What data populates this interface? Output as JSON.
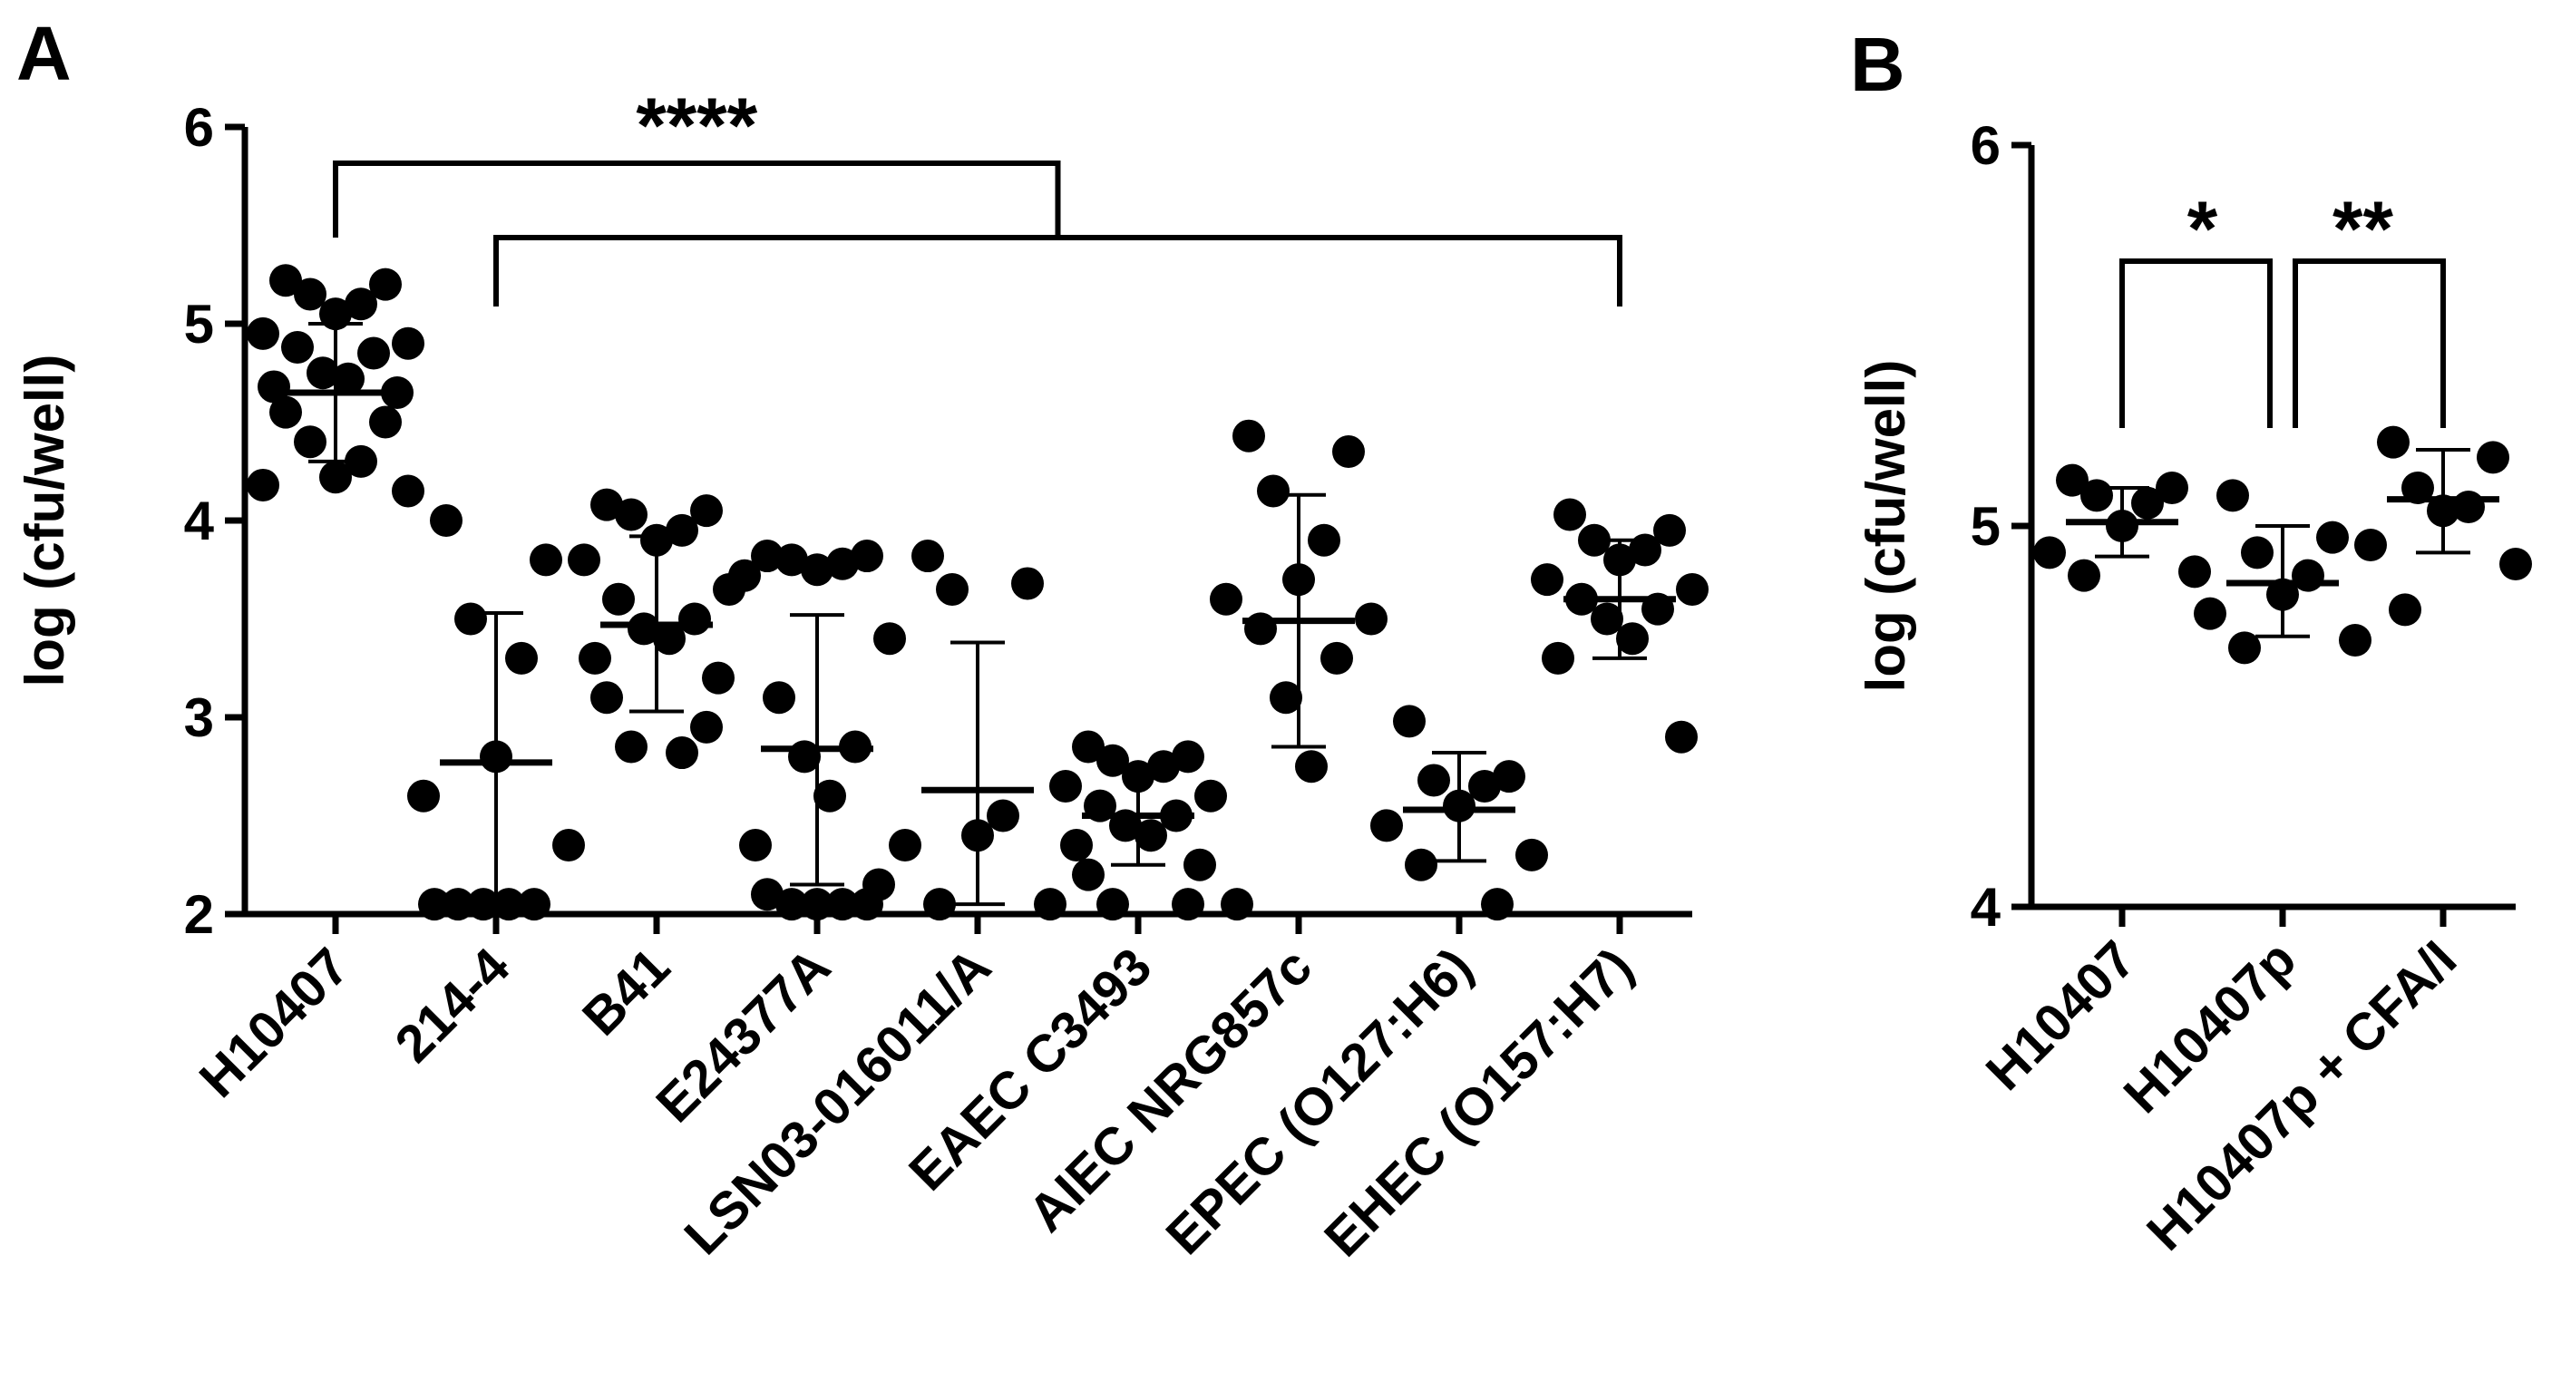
{
  "chart_data": [
    {
      "type": "scatter",
      "panel": "A",
      "ylabel": "log (cfu/well)",
      "ylim": [
        2,
        6
      ],
      "yticks": [
        2,
        3,
        4,
        5,
        6
      ],
      "categories": [
        "H10407",
        "214-4",
        "B41",
        "E24377A",
        "LSN03-016011/A",
        "EAEC C3493",
        "AIEC NRG857c",
        "EPEC (O127:H6)",
        "EHEC (O157:H7)"
      ],
      "series": [
        {
          "name": "H10407",
          "mean": 4.65,
          "sd_low": 4.3,
          "sd_high": 5.0,
          "points": [
            5.22,
            5.2,
            5.15,
            5.1,
            5.05,
            4.95,
            4.9,
            4.88,
            4.85,
            4.75,
            4.72,
            4.68,
            4.65,
            4.55,
            4.5,
            4.4,
            4.3,
            4.22,
            4.18,
            4.15
          ]
        },
        {
          "name": "214-4",
          "mean": 2.77,
          "sd_low": 2.0,
          "sd_high": 3.53,
          "points": [
            4.0,
            3.8,
            3.5,
            3.3,
            2.8,
            2.6,
            2.35,
            2.05,
            2.05,
            2.05,
            2.05,
            2.05
          ]
        },
        {
          "name": "B41",
          "mean": 3.47,
          "sd_low": 3.03,
          "sd_high": 3.92,
          "points": [
            4.08,
            4.05,
            4.03,
            3.95,
            3.9,
            3.8,
            3.65,
            3.6,
            3.5,
            3.45,
            3.4,
            3.3,
            3.2,
            3.1,
            2.95,
            2.85,
            2.82
          ]
        },
        {
          "name": "E24377A",
          "mean": 2.84,
          "sd_low": 2.15,
          "sd_high": 3.52,
          "points": [
            3.82,
            3.82,
            3.8,
            3.78,
            3.75,
            3.72,
            3.4,
            3.1,
            2.85,
            2.8,
            2.6,
            2.35,
            2.15,
            2.1,
            2.05,
            2.05,
            2.05,
            2.05
          ]
        },
        {
          "name": "LSN03-016011/A",
          "mean": 2.63,
          "sd_low": 2.05,
          "sd_high": 3.38,
          "points": [
            3.82,
            3.68,
            3.65,
            2.5,
            2.4,
            2.35,
            2.05,
            2.05
          ]
        },
        {
          "name": "EAEC C3493",
          "mean": 2.5,
          "sd_low": 2.25,
          "sd_high": 2.75,
          "points": [
            2.85,
            2.8,
            2.78,
            2.75,
            2.7,
            2.65,
            2.6,
            2.55,
            2.5,
            2.45,
            2.4,
            2.35,
            2.25,
            2.2,
            2.05,
            2.05
          ]
        },
        {
          "name": "AIEC NRG857c",
          "mean": 3.49,
          "sd_low": 2.85,
          "sd_high": 4.13,
          "points": [
            4.43,
            4.35,
            4.15,
            3.9,
            3.7,
            3.6,
            3.5,
            3.45,
            3.3,
            3.1,
            2.75,
            2.05
          ]
        },
        {
          "name": "EPEC (O127:H6)",
          "mean": 2.53,
          "sd_low": 2.27,
          "sd_high": 2.82,
          "points": [
            2.98,
            2.7,
            2.68,
            2.65,
            2.55,
            2.45,
            2.3,
            2.25,
            2.05
          ]
        },
        {
          "name": "EHEC (O157:H7)",
          "mean": 3.6,
          "sd_low": 3.3,
          "sd_high": 3.9,
          "points": [
            4.03,
            3.95,
            3.9,
            3.85,
            3.8,
            3.7,
            3.65,
            3.6,
            3.55,
            3.5,
            3.4,
            3.3,
            2.9
          ]
        }
      ],
      "annotations": [
        {
          "text": "****",
          "comparison": "H10407 vs all others"
        }
      ]
    },
    {
      "type": "scatter",
      "panel": "B",
      "ylabel": "log (cfu/well)",
      "ylim": [
        4,
        6
      ],
      "yticks": [
        4,
        5,
        6
      ],
      "categories": [
        "H10407",
        "H10407p",
        "H10407p + CFA/I"
      ],
      "series": [
        {
          "name": "H10407",
          "mean": 5.01,
          "sd_low": 4.92,
          "sd_high": 5.1,
          "points": [
            5.12,
            5.1,
            5.08,
            5.06,
            5.0,
            4.93,
            4.88,
            4.87
          ]
        },
        {
          "name": "H10407p",
          "mean": 4.85,
          "sd_low": 4.71,
          "sd_high": 5.0,
          "points": [
            5.08,
            4.97,
            4.93,
            4.87,
            4.82,
            4.77,
            4.7,
            4.68
          ]
        },
        {
          "name": "H10407p + CFA/I",
          "mean": 5.07,
          "sd_low": 4.93,
          "sd_high": 5.2,
          "points": [
            5.22,
            5.18,
            5.1,
            5.05,
            5.04,
            4.95,
            4.9,
            4.78
          ]
        }
      ],
      "annotations": [
        {
          "text": "*",
          "comparison": "H10407 vs H10407p"
        },
        {
          "text": "**",
          "comparison": "H10407p vs H10407p + CFA/I"
        }
      ]
    }
  ]
}
